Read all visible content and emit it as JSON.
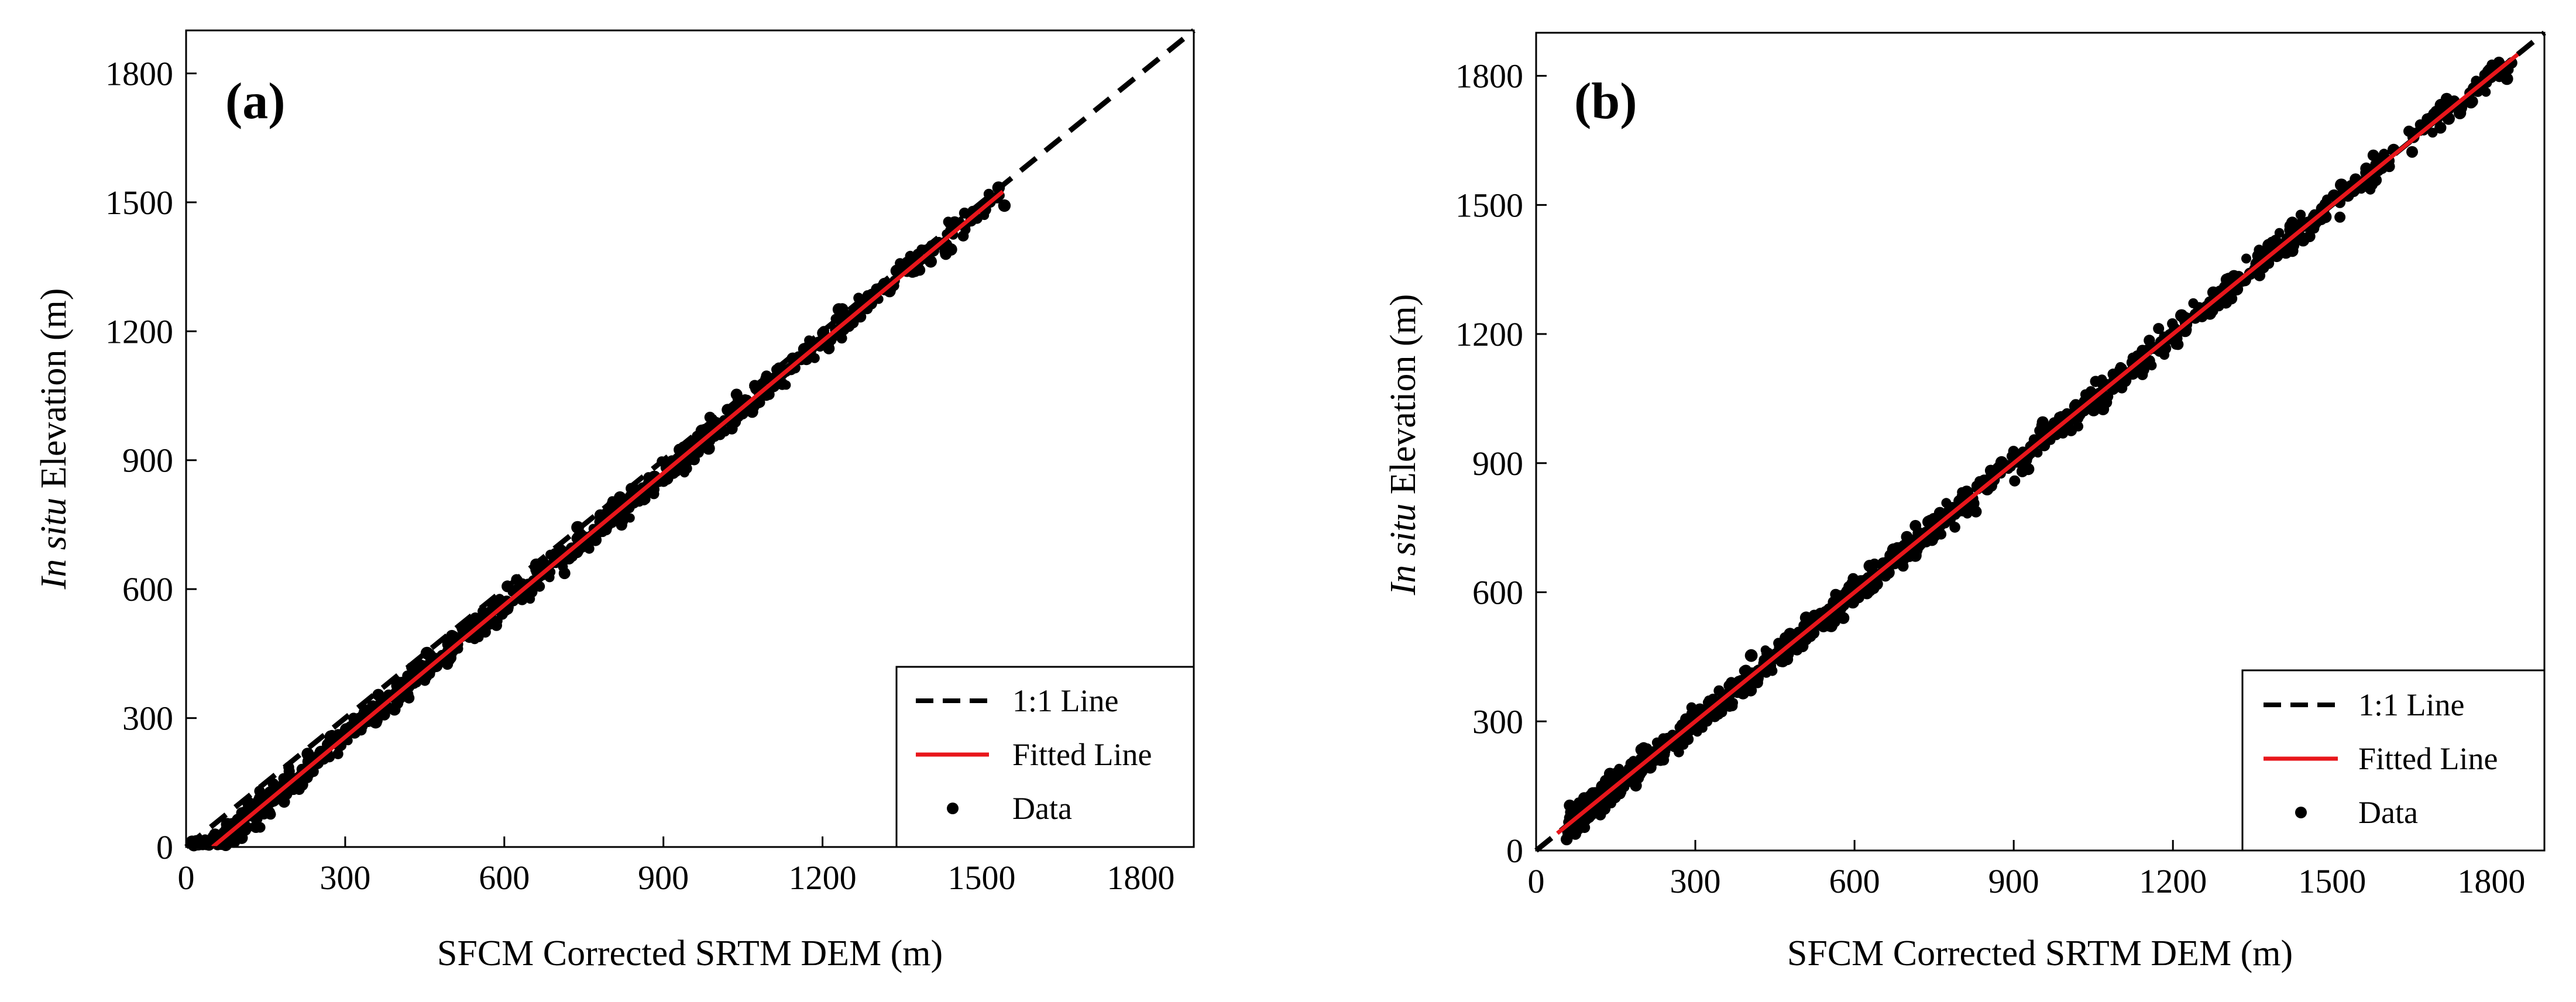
{
  "figure": {
    "legend_labels": {
      "one_to_one": "1:1 Line",
      "fitted": "Fitted Line",
      "data": "Data"
    }
  },
  "chart_data": [
    {
      "type": "scatter",
      "panel_label": "(a)",
      "xlabel": "SFCM Corrected SRTM DEM (m)",
      "ylabel_italic": "In situ",
      "ylabel_rest": " Elevation (m)",
      "xlim": [
        0,
        1900
      ],
      "ylim": [
        0,
        1900
      ],
      "xticks": [
        0,
        300,
        600,
        900,
        1200,
        1500,
        1800
      ],
      "yticks": [
        0,
        300,
        600,
        900,
        1200,
        1500,
        1800
      ],
      "tick_labels": [
        "0",
        "300",
        "600",
        "900",
        "1200",
        "1500",
        "1800"
      ],
      "legend_position": "bottom-right",
      "grid": false,
      "series": [
        {
          "name": "1:1 Line",
          "kind": "line",
          "style": "dashed",
          "color": "#000000",
          "x": [
            0,
            1900
          ],
          "y": [
            0,
            1900
          ]
        },
        {
          "name": "Fitted Line",
          "kind": "line",
          "style": "solid",
          "color": "#e8161b",
          "x": [
            50,
            1540
          ],
          "y": [
            0,
            1525
          ]
        },
        {
          "name": "Data",
          "kind": "scatter",
          "color": "#000000",
          "x_range": [
            12,
            1540
          ],
          "spread": 22,
          "count": 900,
          "sparse_above": 1300
        }
      ]
    },
    {
      "type": "scatter",
      "panel_label": "(b)",
      "xlabel": "SFCM Corrected SRTM DEM (m)",
      "ylabel_italic": "In situ",
      "ylabel_rest": " Elevation (m)",
      "xlim": [
        0,
        1900
      ],
      "ylim": [
        0,
        1900
      ],
      "xticks": [
        0,
        300,
        600,
        900,
        1200,
        1500,
        1800
      ],
      "yticks": [
        0,
        300,
        600,
        900,
        1200,
        1500,
        1800
      ],
      "tick_labels": [
        "0",
        "300",
        "600",
        "900",
        "1200",
        "1500",
        "1800"
      ],
      "legend_position": "bottom-right",
      "grid": false,
      "series": [
        {
          "name": "1:1 Line",
          "kind": "line",
          "style": "dashed",
          "color": "#000000",
          "x": [
            0,
            1900
          ],
          "y": [
            0,
            1900
          ]
        },
        {
          "name": "Fitted Line",
          "kind": "line",
          "style": "solid",
          "color": "#e8161b",
          "x": [
            40,
            1850
          ],
          "y": [
            40,
            1850
          ]
        },
        {
          "name": "Data",
          "kind": "scatter",
          "color": "#000000",
          "x_range": [
            60,
            1840
          ],
          "spread": 24,
          "count": 1100,
          "sparse_above": 1450
        }
      ]
    }
  ]
}
